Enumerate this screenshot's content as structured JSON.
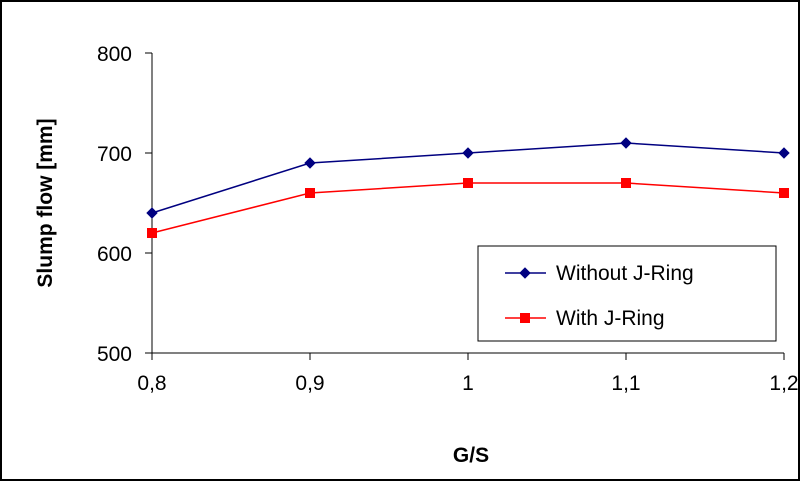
{
  "chart_data": {
    "type": "line",
    "title": "",
    "xlabel": "G/S",
    "ylabel": "Slump flow [mm]",
    "categories": [
      "0,8",
      "0,9",
      "1",
      "1,1",
      "1,2"
    ],
    "ylim": [
      500,
      800
    ],
    "yticks": [
      "500",
      "600",
      "700",
      "800"
    ],
    "grid": false,
    "legend_position": "bottom-right",
    "series": [
      {
        "name": "Without J-Ring",
        "values": [
          640,
          690,
          700,
          710,
          700
        ],
        "color": "#000080",
        "marker": "diamond"
      },
      {
        "name": "With J-Ring",
        "values": [
          620,
          660,
          670,
          670,
          660
        ],
        "color": "#ff0000",
        "marker": "square"
      }
    ]
  }
}
